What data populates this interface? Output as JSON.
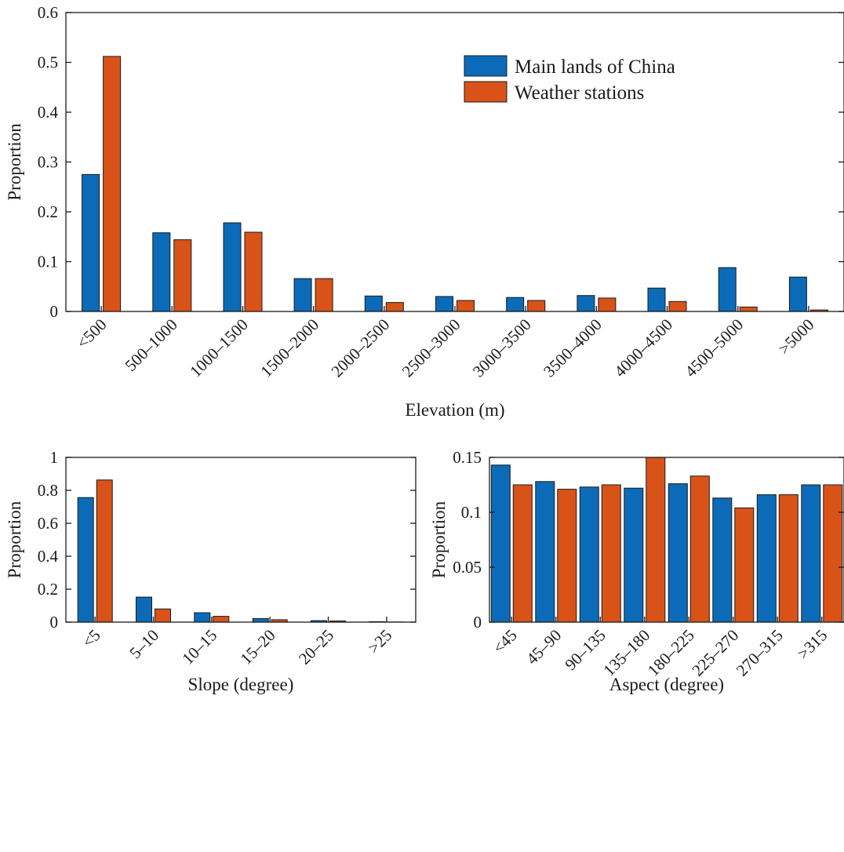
{
  "colors": {
    "main_lands": "#0c6bb8",
    "weather_stations": "#d95319"
  },
  "legend": {
    "items": [
      "Main lands of China",
      "Weather stations"
    ],
    "placement": "top-right"
  },
  "chart_data": [
    {
      "type": "bar",
      "xlabel": "Elevation (m)",
      "ylabel": "Proportion",
      "ylim": [
        0,
        0.6
      ],
      "yticks": [
        "0",
        "0.1",
        "0.2",
        "0.3",
        "0.4",
        "0.5",
        "0.6"
      ],
      "categories": [
        "<500",
        "500–1000",
        "1000–1500",
        "1500–2000",
        "2000–2500",
        "2500–3000",
        "3000–3500",
        "3500–4000",
        "4000–4500",
        "4500–5000",
        ">5000"
      ],
      "series": [
        {
          "name": "Main lands of China",
          "values": [
            0.275,
            0.158,
            0.178,
            0.066,
            0.031,
            0.03,
            0.028,
            0.032,
            0.047,
            0.088,
            0.069
          ]
        },
        {
          "name": "Weather stations",
          "values": [
            0.512,
            0.144,
            0.159,
            0.066,
            0.018,
            0.022,
            0.022,
            0.027,
            0.02,
            0.009,
            0.003
          ]
        }
      ]
    },
    {
      "type": "bar",
      "xlabel": "Slope (degree)",
      "ylabel": "Proportion",
      "ylim": [
        0,
        1
      ],
      "yticks": [
        "0",
        "0.2",
        "0.4",
        "0.6",
        "0.8",
        "1"
      ],
      "categories": [
        "<5",
        "5–10",
        "10–15",
        "15–20",
        "20–25",
        ">25"
      ],
      "series": [
        {
          "name": "Main lands of China",
          "values": [
            0.756,
            0.152,
            0.057,
            0.022,
            0.009,
            0.003
          ]
        },
        {
          "name": "Weather stations",
          "values": [
            0.863,
            0.08,
            0.035,
            0.015,
            0.007,
            0.001
          ]
        }
      ]
    },
    {
      "type": "bar",
      "xlabel": "Aspect (degree)",
      "ylabel": "Proportion",
      "ylim": [
        0,
        0.15
      ],
      "yticks": [
        "0",
        "0.05",
        "0.1",
        "0.15"
      ],
      "categories": [
        "<45",
        "45–90",
        "90–135",
        "135–180",
        "180–225",
        "225–270",
        "270–315",
        ">315"
      ],
      "series": [
        {
          "name": "Main lands of China",
          "values": [
            0.143,
            0.128,
            0.123,
            0.122,
            0.126,
            0.113,
            0.116,
            0.125
          ]
        },
        {
          "name": "Weather stations",
          "values": [
            0.125,
            0.121,
            0.125,
            0.15,
            0.133,
            0.104,
            0.116,
            0.125
          ]
        }
      ]
    }
  ]
}
